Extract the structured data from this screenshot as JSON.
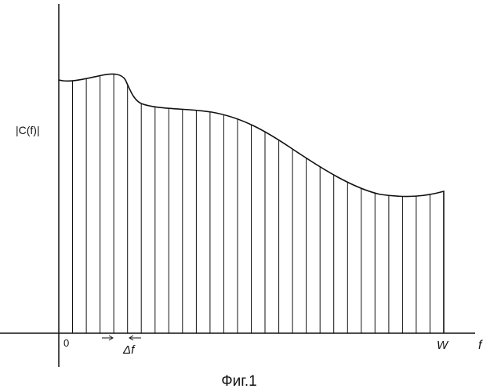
{
  "diagram": {
    "y_axis_label": "|C(f)|",
    "x_axis_label": "f",
    "origin_label": "0",
    "end_label": "W",
    "step_label": "Δf",
    "caption": "Фиг.1",
    "sample_lines": 28,
    "colors": {
      "ink": "#111111",
      "background": "#ffffff"
    }
  }
}
